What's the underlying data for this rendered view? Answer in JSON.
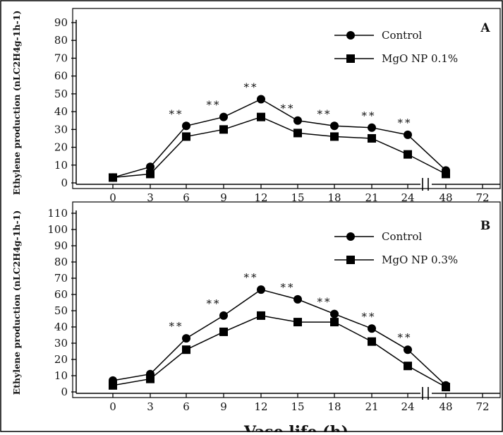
{
  "figure": {
    "xlabel": "Vase life (h)",
    "axis_break_mark": "| |"
  },
  "chart_data": [
    {
      "type": "line",
      "panel_label": "A",
      "ylabel": "Ethylene production (nLC2H4g-1h-1)",
      "ylim": [
        0,
        90
      ],
      "yticks": [
        0,
        10,
        20,
        30,
        40,
        50,
        60,
        70,
        80,
        90
      ],
      "xticks": [
        "0",
        "3",
        "6",
        "9",
        "12",
        "15",
        "18",
        "21",
        "24",
        "48",
        "72"
      ],
      "x": [
        0,
        3,
        6,
        9,
        12,
        15,
        18,
        21,
        24,
        48
      ],
      "series": [
        {
          "name": "Control",
          "marker": "circle",
          "values": [
            3,
            9,
            32,
            37,
            47,
            35,
            32,
            31,
            27,
            7
          ]
        },
        {
          "name": "MgO NP 0.1%",
          "marker": "square",
          "values": [
            3,
            5,
            26,
            30,
            37,
            28,
            26,
            25,
            16,
            5
          ]
        }
      ],
      "significance": [
        {
          "x": 6,
          "label": "**"
        },
        {
          "x": 9,
          "label": "**"
        },
        {
          "x": 12,
          "label": "**"
        },
        {
          "x": 15,
          "label": "**"
        },
        {
          "x": 18,
          "label": "**"
        },
        {
          "x": 21,
          "label": "**"
        },
        {
          "x": 24,
          "label": "**"
        }
      ],
      "legend": "top-right",
      "grid": false
    },
    {
      "type": "line",
      "panel_label": "B",
      "ylabel": "Ethylene production (nLC2H4g-1h-1)",
      "ylim": [
        0,
        110
      ],
      "yticks": [
        0,
        10,
        20,
        30,
        40,
        50,
        60,
        70,
        80,
        90,
        100,
        110
      ],
      "xticks": [
        "0",
        "3",
        "6",
        "9",
        "12",
        "15",
        "18",
        "21",
        "24",
        "48",
        "72"
      ],
      "x": [
        0,
        3,
        6,
        9,
        12,
        15,
        18,
        21,
        24,
        48
      ],
      "series": [
        {
          "name": "Control",
          "marker": "circle",
          "values": [
            7,
            11,
            33,
            47,
            63,
            57,
            48,
            39,
            26,
            4
          ]
        },
        {
          "name": "MgO NP 0.3%",
          "marker": "square",
          "values": [
            4,
            8,
            26,
            37,
            47,
            43,
            43,
            31,
            16,
            3
          ]
        }
      ],
      "significance": [
        {
          "x": 6,
          "label": "**"
        },
        {
          "x": 9,
          "label": "**"
        },
        {
          "x": 12,
          "label": "**"
        },
        {
          "x": 15,
          "label": "**"
        },
        {
          "x": 18,
          "label": "**"
        },
        {
          "x": 21,
          "label": "**"
        },
        {
          "x": 24,
          "label": "**"
        }
      ],
      "legend": "top-right",
      "grid": false
    }
  ]
}
